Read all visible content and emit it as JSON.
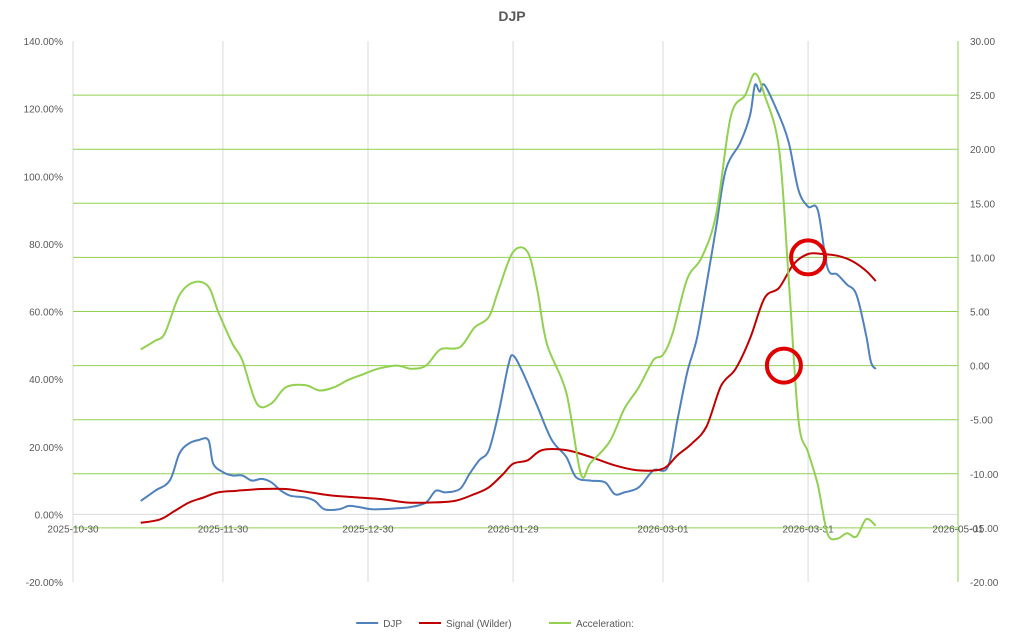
{
  "chart_data": {
    "type": "line",
    "title": "DJP",
    "x_axis": {
      "type": "date",
      "range": [
        "2025-10-30",
        "2026-05-01"
      ],
      "tick_labels": [
        "2025-10-30",
        "2025-11-30",
        "2025-12-30",
        "2026-01-29",
        "2026-03-01",
        "2026-03-31",
        "2026-05-01"
      ]
    },
    "y_left": {
      "range": [
        -20,
        140
      ],
      "tick_labels": [
        "-20.00%",
        "0.00%",
        "20.00%",
        "40.00%",
        "60.00%",
        "80.00%",
        "100.00%",
        "120.00%",
        "140.00%"
      ],
      "gridlines": "vertical-only"
    },
    "y_right": {
      "range": [
        -20,
        30
      ],
      "tick_labels": [
        "-20.00",
        "-15.00",
        "-10.00",
        "-5.00",
        "0.00",
        "5.00",
        "10.00",
        "15.00",
        "20.00",
        "25.00",
        "30.00"
      ],
      "gridlines": "horizontal",
      "grid_color": "#92d050"
    },
    "legend_position": "bottom",
    "series": [
      {
        "name": "DJP",
        "axis": "left",
        "color": "#4f81bd",
        "points": [
          [
            "2025-11-13",
            4
          ],
          [
            "2025-11-16",
            7
          ],
          [
            "2025-11-19",
            10
          ],
          [
            "2025-11-21",
            18
          ],
          [
            "2025-11-23",
            21
          ],
          [
            "2025-11-25",
            22
          ],
          [
            "2025-11-27",
            22
          ],
          [
            "2025-11-28",
            15
          ],
          [
            "2025-11-30",
            12.5
          ],
          [
            "2025-12-02",
            11.5
          ],
          [
            "2025-12-04",
            11.5
          ],
          [
            "2025-12-06",
            10
          ],
          [
            "2025-12-08",
            10.5
          ],
          [
            "2025-12-10",
            9.5
          ],
          [
            "2025-12-12",
            7
          ],
          [
            "2025-12-14",
            5.5
          ],
          [
            "2025-12-17",
            5
          ],
          [
            "2025-12-19",
            4
          ],
          [
            "2025-12-21",
            1.5
          ],
          [
            "2025-12-24",
            1.5
          ],
          [
            "2025-12-26",
            2.5
          ],
          [
            "2025-12-28",
            2.2
          ],
          [
            "2025-12-31",
            1.5
          ],
          [
            "2026-01-05",
            1.8
          ],
          [
            "2026-01-08",
            2.2
          ],
          [
            "2026-01-11",
            3.5
          ],
          [
            "2026-01-13",
            7
          ],
          [
            "2026-01-15",
            6.5
          ],
          [
            "2026-01-18",
            7.5
          ],
          [
            "2026-01-20",
            12
          ],
          [
            "2026-01-22",
            16
          ],
          [
            "2026-01-24",
            19
          ],
          [
            "2026-01-26",
            30
          ],
          [
            "2026-01-28",
            44
          ],
          [
            "2026-01-29",
            47
          ],
          [
            "2026-01-31",
            42
          ],
          [
            "2026-02-03",
            32
          ],
          [
            "2026-02-06",
            22
          ],
          [
            "2026-02-09",
            17
          ],
          [
            "2026-02-11",
            11
          ],
          [
            "2026-02-14",
            10
          ],
          [
            "2026-02-17",
            9.5
          ],
          [
            "2026-02-19",
            6
          ],
          [
            "2026-02-21",
            6.5
          ],
          [
            "2026-02-24",
            8
          ],
          [
            "2026-02-27",
            13
          ],
          [
            "2026-03-02",
            14
          ],
          [
            "2026-03-04",
            28
          ],
          [
            "2026-03-06",
            42
          ],
          [
            "2026-03-08",
            52
          ],
          [
            "2026-03-10",
            68
          ],
          [
            "2026-03-12",
            85
          ],
          [
            "2026-03-14",
            102
          ],
          [
            "2026-03-17",
            110
          ],
          [
            "2026-03-19",
            118
          ],
          [
            "2026-03-20",
            127
          ],
          [
            "2026-03-21",
            125
          ],
          [
            "2026-03-22",
            127
          ],
          [
            "2026-03-25",
            118
          ],
          [
            "2026-03-27",
            110
          ],
          [
            "2026-03-29",
            96
          ],
          [
            "2026-03-31",
            91
          ],
          [
            "2026-04-02",
            90
          ],
          [
            "2026-04-04",
            73
          ],
          [
            "2026-04-06",
            71
          ],
          [
            "2026-04-08",
            68
          ],
          [
            "2026-04-10",
            65
          ],
          [
            "2026-04-12",
            53
          ],
          [
            "2026-04-13",
            45
          ],
          [
            "2026-04-14",
            43
          ]
        ]
      },
      {
        "name": "Signal (Wilder)",
        "axis": "left",
        "color": "#c00000",
        "points": [
          [
            "2025-11-13",
            -2.5
          ],
          [
            "2025-11-17",
            -1.5
          ],
          [
            "2025-11-20",
            1
          ],
          [
            "2025-11-23",
            3.5
          ],
          [
            "2025-11-26",
            5
          ],
          [
            "2025-11-29",
            6.5
          ],
          [
            "2025-12-03",
            7
          ],
          [
            "2025-12-08",
            7.5
          ],
          [
            "2025-12-13",
            7.5
          ],
          [
            "2025-12-18",
            6.5
          ],
          [
            "2025-12-23",
            5.5
          ],
          [
            "2025-12-28",
            5
          ],
          [
            "2026-01-02",
            4.5
          ],
          [
            "2026-01-07",
            3.5
          ],
          [
            "2026-01-12",
            3.5
          ],
          [
            "2026-01-17",
            4
          ],
          [
            "2026-01-21",
            6
          ],
          [
            "2026-01-24",
            8
          ],
          [
            "2026-01-27",
            12
          ],
          [
            "2026-01-29",
            15
          ],
          [
            "2026-02-01",
            16
          ],
          [
            "2026-02-04",
            19
          ],
          [
            "2026-02-09",
            19
          ],
          [
            "2026-02-14",
            17
          ],
          [
            "2026-02-19",
            14.5
          ],
          [
            "2026-02-24",
            13
          ],
          [
            "2026-03-01",
            13.5
          ],
          [
            "2026-03-04",
            17.5
          ],
          [
            "2026-03-07",
            21
          ],
          [
            "2026-03-10",
            26
          ],
          [
            "2026-03-13",
            38
          ],
          [
            "2026-03-16",
            43
          ],
          [
            "2026-03-19",
            52
          ],
          [
            "2026-03-22",
            64
          ],
          [
            "2026-03-25",
            67
          ],
          [
            "2026-03-28",
            74
          ],
          [
            "2026-03-31",
            77
          ],
          [
            "2026-04-03",
            77
          ],
          [
            "2026-04-06",
            76.5
          ],
          [
            "2026-04-09",
            75
          ],
          [
            "2026-04-12",
            72
          ],
          [
            "2026-04-14",
            69
          ]
        ]
      },
      {
        "name": "Acceleration:",
        "axis": "right",
        "color": "#92d050",
        "points": [
          [
            "2025-11-13",
            1.5
          ],
          [
            "2025-11-16",
            2.3
          ],
          [
            "2025-11-18",
            3
          ],
          [
            "2025-11-21",
            6.5
          ],
          [
            "2025-11-24",
            7.7
          ],
          [
            "2025-11-27",
            7.3
          ],
          [
            "2025-11-29",
            5
          ],
          [
            "2025-12-02",
            2
          ],
          [
            "2025-12-04",
            0.5
          ],
          [
            "2025-12-07",
            -3.5
          ],
          [
            "2025-12-10",
            -3.5
          ],
          [
            "2025-12-13",
            -2
          ],
          [
            "2025-12-17",
            -1.8
          ],
          [
            "2025-12-20",
            -2.3
          ],
          [
            "2025-12-23",
            -2
          ],
          [
            "2025-12-26",
            -1.3
          ],
          [
            "2025-12-29",
            -0.8
          ],
          [
            "2026-01-01",
            -0.3
          ],
          [
            "2026-01-05",
            0
          ],
          [
            "2026-01-08",
            -0.3
          ],
          [
            "2026-01-11",
            0
          ],
          [
            "2026-01-14",
            1.5
          ],
          [
            "2026-01-18",
            1.7
          ],
          [
            "2026-01-21",
            3.5
          ],
          [
            "2026-01-24",
            4.5
          ],
          [
            "2026-01-26",
            7
          ],
          [
            "2026-01-29",
            10.5
          ],
          [
            "2026-02-01",
            10.5
          ],
          [
            "2026-02-03",
            7
          ],
          [
            "2026-02-05",
            2
          ],
          [
            "2026-02-09",
            -2.5
          ],
          [
            "2026-02-12",
            -10
          ],
          [
            "2026-02-14",
            -9
          ],
          [
            "2026-02-18",
            -7
          ],
          [
            "2026-02-21",
            -4
          ],
          [
            "2026-02-24",
            -2
          ],
          [
            "2026-02-27",
            0.5
          ],
          [
            "2026-03-01",
            1
          ],
          [
            "2026-03-03",
            3
          ],
          [
            "2026-03-06",
            8
          ],
          [
            "2026-03-09",
            10
          ],
          [
            "2026-03-12",
            14
          ],
          [
            "2026-03-15",
            23
          ],
          [
            "2026-03-18",
            25
          ],
          [
            "2026-03-20",
            27
          ],
          [
            "2026-03-22",
            25
          ],
          [
            "2026-03-25",
            20
          ],
          [
            "2026-03-27",
            8
          ],
          [
            "2026-03-29",
            -5
          ],
          [
            "2026-03-31",
            -8
          ],
          [
            "2026-04-02",
            -11
          ],
          [
            "2026-04-04",
            -15.5
          ],
          [
            "2026-04-06",
            -16
          ],
          [
            "2026-04-08",
            -15.5
          ],
          [
            "2026-04-10",
            -15.8
          ],
          [
            "2026-04-12",
            -14.2
          ],
          [
            "2026-04-14",
            -14.8
          ]
        ]
      }
    ],
    "annotations": [
      {
        "shape": "circle",
        "color": "#e00000",
        "at": [
          "2026-03-31",
          76
        ],
        "axis": "left"
      },
      {
        "shape": "circle",
        "color": "#e00000",
        "at": [
          "2026-03-26",
          0
        ],
        "axis": "right"
      }
    ]
  }
}
